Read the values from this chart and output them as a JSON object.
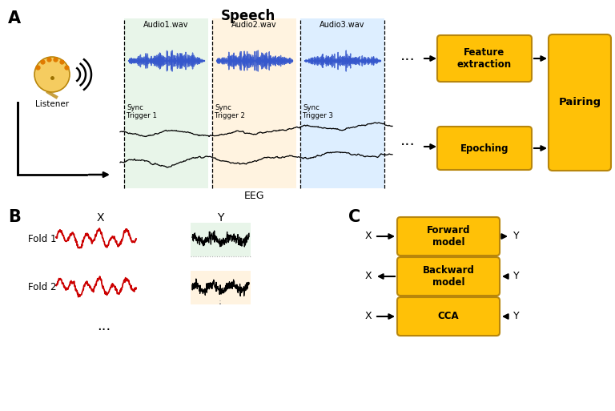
{
  "bg_color": "#ffffff",
  "gold_color": "#FFC107",
  "gold_border": "#B8860B",
  "section_labels": [
    "A",
    "B",
    "C"
  ],
  "speech_label": "Speech",
  "eeg_label": "EEG",
  "listener_label": "Listener",
  "audio_labels": [
    "Audio1.wav",
    "Audio2.wav",
    "Audio3.wav"
  ],
  "sync_labels": [
    "Sync\nTrigger 1",
    "Sync\nTrigger 2",
    "Sync\nTrigger 3"
  ],
  "feature_extraction_label": "Feature\nextraction",
  "epoching_label": "Epoching",
  "pairing_label": "Pairing",
  "fold1_label": "Fold 1",
  "fold2_label": "Fold 2",
  "x_label": "X",
  "y_label": "Y",
  "forward_model_label": "Forward\nmodel",
  "backward_model_label": "Backward\nmodel",
  "cca_label": "CCA",
  "audio_bg_colors": [
    "#e8f5e9",
    "#fff3e0",
    "#ddeeff"
  ],
  "fold1_bg": "#e8f5e9",
  "fold2_bg": "#fff3e0",
  "dots_color": "#333333"
}
